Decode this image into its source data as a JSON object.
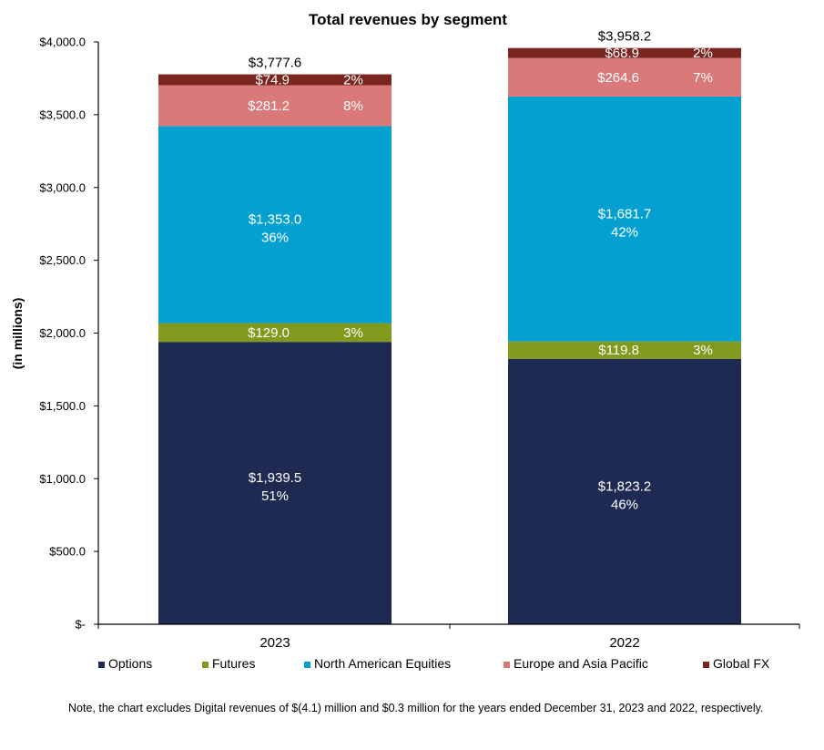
{
  "chart_data": {
    "type": "bar",
    "stacked": true,
    "title": "Total revenues by segment",
    "ylabel": "(in millions)",
    "xlabel": "",
    "ylim": [
      0,
      4000
    ],
    "yticks": [
      {
        "value": 0,
        "label": "$-"
      },
      {
        "value": 500,
        "label": "$500.0"
      },
      {
        "value": 1000,
        "label": "$1,000.0"
      },
      {
        "value": 1500,
        "label": "$1,500.0"
      },
      {
        "value": 2000,
        "label": "$2,000.0"
      },
      {
        "value": 2500,
        "label": "$2,500.0"
      },
      {
        "value": 3000,
        "label": "$3,000.0"
      },
      {
        "value": 3500,
        "label": "$3,500.0"
      },
      {
        "value": 4000,
        "label": "$4,000.0"
      }
    ],
    "categories": [
      "2023",
      "2022"
    ],
    "totals": [
      {
        "value": 3777.6,
        "label": "$3,777.6"
      },
      {
        "value": 3958.2,
        "label": "$3,958.2"
      }
    ],
    "series": [
      {
        "name": "Options",
        "color": "#1f2a52",
        "label_color": "#ffffff",
        "inline": false,
        "values": [
          1939.5,
          1823.2
        ],
        "labels": [
          "$1,939.5",
          "$1,823.2"
        ],
        "pcts": [
          "51%",
          "46%"
        ]
      },
      {
        "name": "Futures",
        "color": "#7f9a1c",
        "label_color": "#ffffff",
        "inline": true,
        "values": [
          129.0,
          119.8
        ],
        "labels": [
          "$129.0",
          "$119.8"
        ],
        "pcts": [
          "3%",
          "3%"
        ]
      },
      {
        "name": "North American Equities",
        "color": "#04a0d0",
        "label_color": "#ffffff",
        "inline": false,
        "values": [
          1353.0,
          1681.7
        ],
        "labels": [
          "$1,353.0",
          "$1,681.7"
        ],
        "pcts": [
          "36%",
          "42%"
        ]
      },
      {
        "name": "Europe and Asia Pacific",
        "color": "#da7979",
        "label_color": "#ffffff",
        "inline": true,
        "values": [
          281.2,
          264.6
        ],
        "labels": [
          "$281.2",
          "$264.6"
        ],
        "pcts": [
          "8%",
          "7%"
        ]
      },
      {
        "name": "Global FX",
        "color": "#7a2620",
        "label_color": "#ffffff",
        "inline": true,
        "values": [
          74.9,
          68.9
        ],
        "labels": [
          "$74.9",
          "$68.9"
        ],
        "pcts": [
          "2%",
          "2%"
        ]
      }
    ],
    "legend_position": "bottom"
  },
  "note": "Note, the chart excludes Digital revenues of $(4.1) million and $0.3 million for the years ended December 31, 2023 and 2022, respectively."
}
